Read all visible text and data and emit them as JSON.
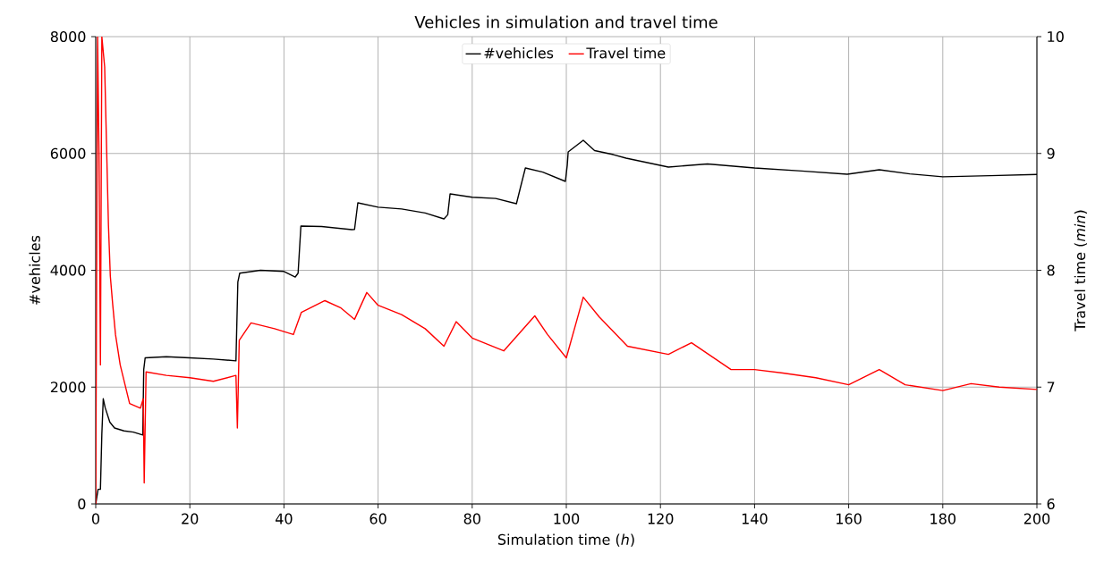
{
  "chart_data": {
    "type": "line",
    "title": "Vehicles in simulation and travel time",
    "xlabel": "Simulation time (*h*)",
    "ylabel": "#vehicles",
    "y2label": "Travel time (*min*)",
    "xlim": [
      0,
      200
    ],
    "xticks": [
      0,
      20,
      40,
      60,
      80,
      100,
      120,
      140,
      160,
      180,
      200
    ],
    "ylim": [
      0,
      8000
    ],
    "yticks": [
      0,
      2000,
      4000,
      6000,
      8000
    ],
    "y2lim": [
      6,
      10
    ],
    "y2ticks": [
      6,
      7,
      8,
      9,
      10
    ],
    "grid": true,
    "legend": "top",
    "series": [
      {
        "name": "#vehicles",
        "color": "#000000",
        "x": [
          0,
          0.5,
          1,
          1.3,
          1.6,
          2,
          3,
          4,
          6,
          8,
          10,
          10.2,
          10.5,
          15,
          20,
          25,
          29.8,
          30.2,
          30.6,
          35,
          40,
          42.4,
          43,
          43.6,
          48,
          54.4,
          55,
          55.7,
          60,
          65,
          70,
          74,
          74.8,
          75.3,
          80,
          85,
          89.4,
          90.2,
          91.3,
          95,
          99.8,
          100.2,
          100.4,
          103.6,
          106,
          110,
          112.7,
          121.7,
          130,
          140,
          150,
          159.7,
          166.5,
          173,
          180,
          190,
          200
        ],
        "values": [
          0,
          250,
          250,
          1200,
          1800,
          1650,
          1400,
          1300,
          1250,
          1230,
          1180,
          2300,
          2500,
          2520,
          2500,
          2480,
          2450,
          3800,
          3950,
          4000,
          3980,
          3885,
          3950,
          4757,
          4750,
          4696,
          4700,
          5155,
          5080,
          5050,
          4980,
          4880,
          4950,
          5308,
          5250,
          5230,
          5140,
          5400,
          5751,
          5680,
          5522,
          5800,
          6027,
          6226,
          6050,
          5980,
          5920,
          5767,
          5820,
          5751,
          5700,
          5644,
          5720,
          5650,
          5600,
          5620,
          5640
        ]
      },
      {
        "name": "Travel time",
        "color": "#ff0000",
        "axis": "y2",
        "x": [
          0,
          0.4,
          0.7,
          1,
          1.3,
          1.9,
          2.7,
          3.1,
          3.6,
          4.2,
          5.2,
          7.2,
          9.5,
          10.1,
          10.3,
          10.7,
          15,
          20,
          25,
          29.8,
          30.1,
          30.5,
          33,
          38,
          42,
          43.7,
          48.7,
          52,
          55,
          57.6,
          60,
          65,
          70,
          74,
          76.6,
          80,
          86.7,
          93.3,
          96,
          100,
          103.6,
          107,
          113,
          121.7,
          126.6,
          135,
          140,
          146,
          153,
          160,
          166.5,
          172,
          180,
          186,
          192,
          200
        ],
        "values": [
          6.0,
          10,
          9.0,
          7.19,
          10,
          9.74,
          8.39,
          7.95,
          7.71,
          7.45,
          7.19,
          6.86,
          6.82,
          6.9,
          6.18,
          7.13,
          7.1,
          7.08,
          7.05,
          7.1,
          6.65,
          7.4,
          7.55,
          7.5,
          7.45,
          7.64,
          7.74,
          7.68,
          7.58,
          7.81,
          7.7,
          7.62,
          7.5,
          7.35,
          7.56,
          7.42,
          7.31,
          7.61,
          7.45,
          7.25,
          7.77,
          7.6,
          7.35,
          7.28,
          7.38,
          7.15,
          7.15,
          7.12,
          7.08,
          7.02,
          7.15,
          7.02,
          6.97,
          7.03,
          7.0,
          6.98
        ]
      }
    ]
  }
}
